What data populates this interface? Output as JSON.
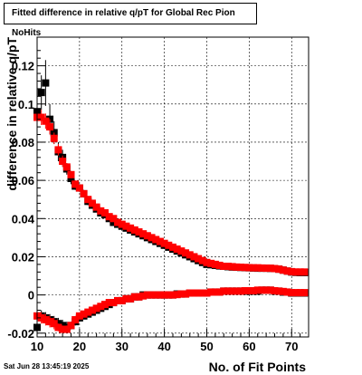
{
  "chart_data": {
    "type": "scatter",
    "title": "Fitted difference in relative q/pT for Global Rec Pion NoHits",
    "xlabel": "No. of Fit Points",
    "ylabel": "difference in relative q/pT",
    "xlim": [
      10,
      74
    ],
    "ylim": [
      -0.022,
      0.135
    ],
    "x_ticks": [
      10,
      20,
      30,
      40,
      50,
      60,
      70
    ],
    "x_tick_labels": [
      "10",
      "20",
      "30",
      "40",
      "50",
      "60",
      "70"
    ],
    "y_ticks": [
      -0.02,
      0,
      0.02,
      0.04,
      0.06,
      0.08,
      0.1,
      0.12
    ],
    "y_tick_labels": [
      "-0.02",
      "0",
      "0.02",
      "0.04",
      "0.06",
      "0.08",
      "0.1",
      "0.12"
    ],
    "grid": true,
    "colors": {
      "series_black": "#000000",
      "series_red": "#ff0000"
    },
    "series": [
      {
        "color": "#000000",
        "marker": "square",
        "role": "upper",
        "x": [
          10,
          11,
          12,
          13,
          14,
          15,
          16,
          17,
          18,
          19,
          20,
          21,
          22,
          23,
          24,
          25,
          26,
          27,
          28,
          29,
          30,
          31,
          32,
          33,
          34,
          35,
          36,
          37,
          38,
          39,
          40,
          41,
          42,
          43,
          44,
          45,
          46,
          47,
          48,
          49,
          50,
          51,
          52,
          53,
          54,
          55,
          56,
          57,
          58,
          59,
          60,
          61,
          62,
          63,
          64,
          65,
          66,
          67,
          68,
          69,
          70,
          71,
          72,
          73
        ],
        "y": [
          0.096,
          0.106,
          0.111,
          0.092,
          0.085,
          0.075,
          0.072,
          0.066,
          0.061,
          0.057,
          0.056,
          0.053,
          0.049,
          0.047,
          0.045,
          0.043,
          0.042,
          0.04,
          0.038,
          0.037,
          0.036,
          0.035,
          0.034,
          0.033,
          0.032,
          0.031,
          0.03,
          0.029,
          0.028,
          0.027,
          0.026,
          0.025,
          0.024,
          0.023,
          0.022,
          0.021,
          0.02,
          0.019,
          0.018,
          0.017,
          0.016,
          0.0158,
          0.0155,
          0.0152,
          0.015,
          0.0148,
          0.0146,
          0.0145,
          0.0144,
          0.0143,
          0.0142,
          0.0141,
          0.014,
          0.014,
          0.014,
          0.0139,
          0.0138,
          0.0135,
          0.013,
          0.0125,
          0.012,
          0.0118,
          0.0117,
          0.0117
        ],
        "err": [
          0.01,
          0.009,
          0.012,
          0.008,
          0.006,
          0.005,
          0.004,
          0.003,
          0.003,
          0.002,
          0.002,
          0.002,
          0.002,
          0.0015,
          0.0015,
          0.0015,
          0.0015,
          0.0015,
          0.0015,
          0.0015,
          0.0015,
          0.0015,
          0.0015,
          0.0015,
          0.0015,
          0.0015,
          0.0015,
          0.0015,
          0.0015,
          0.0015,
          0.0015,
          0.0015,
          0.0015,
          0.0015,
          0.0015,
          0.0015,
          0.0015,
          0.0015,
          0.0015,
          0.0015,
          0.0015,
          0.0015,
          0.0015,
          0.0015,
          0.0015,
          0.0015,
          0.0015,
          0.0015,
          0.0015,
          0.0015,
          0.0015,
          0.0015,
          0.0015,
          0.0015,
          0.0015,
          0.0015,
          0.0015,
          0.0015,
          0.0015,
          0.0015,
          0.0015,
          0.0015,
          0.0015,
          0.0015
        ]
      },
      {
        "color": "#000000",
        "marker": "square",
        "role": "lower",
        "x": [
          10,
          11,
          12,
          13,
          14,
          15,
          16,
          17,
          18,
          19,
          20,
          21,
          22,
          23,
          24,
          25,
          26,
          27,
          28,
          29,
          30,
          31,
          32,
          33,
          34,
          35,
          36,
          37,
          38,
          39,
          40,
          41,
          42,
          43,
          44,
          45,
          46,
          47,
          48,
          49,
          50,
          51,
          52,
          53,
          54,
          55,
          56,
          57,
          58,
          59,
          60,
          61,
          62,
          63,
          64,
          65,
          66,
          67,
          68,
          69,
          70,
          71,
          72,
          73
        ],
        "y": [
          -0.017,
          -0.011,
          -0.012,
          -0.013,
          -0.014,
          -0.015,
          -0.016,
          -0.017,
          -0.016,
          -0.014,
          -0.012,
          -0.011,
          -0.01,
          -0.009,
          -0.008,
          -0.007,
          -0.006,
          -0.005,
          -0.004,
          -0.003,
          -0.003,
          -0.002,
          -0.002,
          -0.001,
          -0.001,
          0.0,
          0.0,
          0.0,
          0.0,
          0.0,
          0.0,
          0.0,
          0.0,
          0.0005,
          0.0005,
          0.0005,
          0.001,
          0.001,
          0.001,
          0.001,
          0.001,
          0.0015,
          0.0015,
          0.0015,
          0.002,
          0.002,
          0.002,
          0.002,
          0.002,
          0.002,
          0.002,
          0.002,
          0.002,
          0.0025,
          0.0025,
          0.0025,
          0.002,
          0.002,
          0.0015,
          0.0015,
          0.001,
          0.001,
          0.001,
          0.001
        ],
        "err": [
          0.003,
          0.003,
          0.003,
          0.003,
          0.003,
          0.003,
          0.003,
          0.003,
          0.002,
          0.002,
          0.002,
          0.0015,
          0.0015,
          0.0015,
          0.0015,
          0.0015,
          0.0015,
          0.0015,
          0.0015,
          0.0015,
          0.0015,
          0.0015,
          0.0015,
          0.0015,
          0.0015,
          0.0015,
          0.0015,
          0.0015,
          0.0015,
          0.0015,
          0.0015,
          0.0015,
          0.0015,
          0.0015,
          0.0015,
          0.0015,
          0.0015,
          0.0015,
          0.0015,
          0.0015,
          0.0015,
          0.0015,
          0.0015,
          0.0015,
          0.0015,
          0.0015,
          0.0015,
          0.0015,
          0.0015,
          0.0015,
          0.0015,
          0.0015,
          0.0015,
          0.0015,
          0.0015,
          0.0015,
          0.0015,
          0.0015,
          0.0015,
          0.0015,
          0.0015,
          0.0015,
          0.0015,
          0.0015
        ]
      },
      {
        "color": "#ff0000",
        "marker": "square",
        "role": "upper",
        "x": [
          10,
          11,
          12,
          13,
          14,
          15,
          16,
          17,
          18,
          19,
          20,
          21,
          22,
          23,
          24,
          25,
          26,
          27,
          28,
          29,
          30,
          31,
          32,
          33,
          34,
          35,
          36,
          37,
          38,
          39,
          40,
          41,
          42,
          43,
          44,
          45,
          46,
          47,
          48,
          49,
          50,
          51,
          52,
          53,
          54,
          55,
          56,
          57,
          58,
          59,
          60,
          61,
          62,
          63,
          64,
          65,
          66,
          67,
          68,
          69,
          70,
          71,
          72,
          73
        ],
        "y": [
          0.093,
          0.093,
          0.091,
          0.088,
          0.082,
          0.076,
          0.07,
          0.067,
          0.063,
          0.058,
          0.056,
          0.053,
          0.05,
          0.048,
          0.046,
          0.044,
          0.043,
          0.041,
          0.04,
          0.038,
          0.037,
          0.036,
          0.035,
          0.034,
          0.033,
          0.032,
          0.031,
          0.03,
          0.029,
          0.028,
          0.027,
          0.026,
          0.025,
          0.024,
          0.023,
          0.022,
          0.021,
          0.02,
          0.019,
          0.018,
          0.017,
          0.0165,
          0.016,
          0.0155,
          0.015,
          0.015,
          0.0148,
          0.0146,
          0.0145,
          0.0144,
          0.0143,
          0.0142,
          0.0142,
          0.0141,
          0.014,
          0.014,
          0.0138,
          0.0135,
          0.013,
          0.0125,
          0.0122,
          0.012,
          0.012,
          0.012
        ],
        "err": [
          0.004,
          0.004,
          0.004,
          0.004,
          0.003,
          0.003,
          0.003,
          0.002,
          0.002,
          0.002,
          0.0015,
          0.0015,
          0.0015,
          0.0015,
          0.0015,
          0.0015,
          0.0015,
          0.0015,
          0.0015,
          0.0015,
          0.0015,
          0.0015,
          0.0015,
          0.0015,
          0.0015,
          0.0015,
          0.0015,
          0.0015,
          0.0015,
          0.0015,
          0.0015,
          0.0015,
          0.0015,
          0.0015,
          0.0015,
          0.0015,
          0.0015,
          0.0015,
          0.0015,
          0.0015,
          0.0015,
          0.0015,
          0.0015,
          0.0015,
          0.0015,
          0.0015,
          0.0015,
          0.0015,
          0.0015,
          0.0015,
          0.0015,
          0.0015,
          0.0015,
          0.0015,
          0.0015,
          0.0015,
          0.0015,
          0.0015,
          0.0015,
          0.0015,
          0.0015,
          0.0015,
          0.0015,
          0.0015
        ]
      },
      {
        "color": "#ff0000",
        "marker": "square",
        "role": "lower",
        "x": [
          10,
          11,
          12,
          13,
          14,
          15,
          16,
          17,
          18,
          19,
          20,
          21,
          22,
          23,
          24,
          25,
          26,
          27,
          28,
          29,
          30,
          31,
          32,
          33,
          34,
          35,
          36,
          37,
          38,
          39,
          40,
          41,
          42,
          43,
          44,
          45,
          46,
          47,
          48,
          49,
          50,
          51,
          52,
          53,
          54,
          55,
          56,
          57,
          58,
          59,
          60,
          61,
          62,
          63,
          64,
          65,
          66,
          67,
          68,
          69,
          70,
          71,
          72,
          73
        ],
        "y": [
          -0.011,
          -0.012,
          -0.013,
          -0.014,
          -0.015,
          -0.017,
          -0.018,
          -0.018,
          -0.016,
          -0.013,
          -0.011,
          -0.01,
          -0.009,
          -0.008,
          -0.007,
          -0.006,
          -0.005,
          -0.004,
          -0.004,
          -0.003,
          -0.003,
          -0.002,
          -0.002,
          -0.001,
          -0.001,
          -0.0005,
          0.0,
          0.0,
          0.0,
          0.0,
          0.0,
          0.0,
          0.0,
          0.0002,
          0.0005,
          0.0005,
          0.001,
          0.001,
          0.001,
          0.001,
          0.001,
          0.0015,
          0.0015,
          0.0015,
          0.002,
          0.002,
          0.002,
          0.002,
          0.002,
          0.0022,
          0.0022,
          0.0022,
          0.0025,
          0.0025,
          0.0025,
          0.0025,
          0.0022,
          0.002,
          0.0018,
          0.0015,
          0.0012,
          0.0012,
          0.0012,
          0.0012
        ],
        "err": [
          0.003,
          0.003,
          0.003,
          0.003,
          0.003,
          0.002,
          0.002,
          0.002,
          0.002,
          0.002,
          0.0015,
          0.0015,
          0.0015,
          0.0015,
          0.0015,
          0.0015,
          0.0015,
          0.0015,
          0.0015,
          0.0015,
          0.0015,
          0.0015,
          0.0015,
          0.0015,
          0.0015,
          0.0015,
          0.0015,
          0.0015,
          0.0015,
          0.0015,
          0.0015,
          0.0015,
          0.0015,
          0.0015,
          0.0015,
          0.0015,
          0.0015,
          0.0015,
          0.0015,
          0.0015,
          0.0015,
          0.0015,
          0.0015,
          0.0015,
          0.0015,
          0.0015,
          0.0015,
          0.0015,
          0.0015,
          0.0015,
          0.0015,
          0.0015,
          0.0015,
          0.0015,
          0.0015,
          0.0015,
          0.0015,
          0.0015,
          0.0015,
          0.0015,
          0.0015,
          0.0015,
          0.0015,
          0.0015
        ]
      }
    ]
  },
  "footer": {
    "timestamp": "Sat Jun 28 13:45:19 2025"
  }
}
